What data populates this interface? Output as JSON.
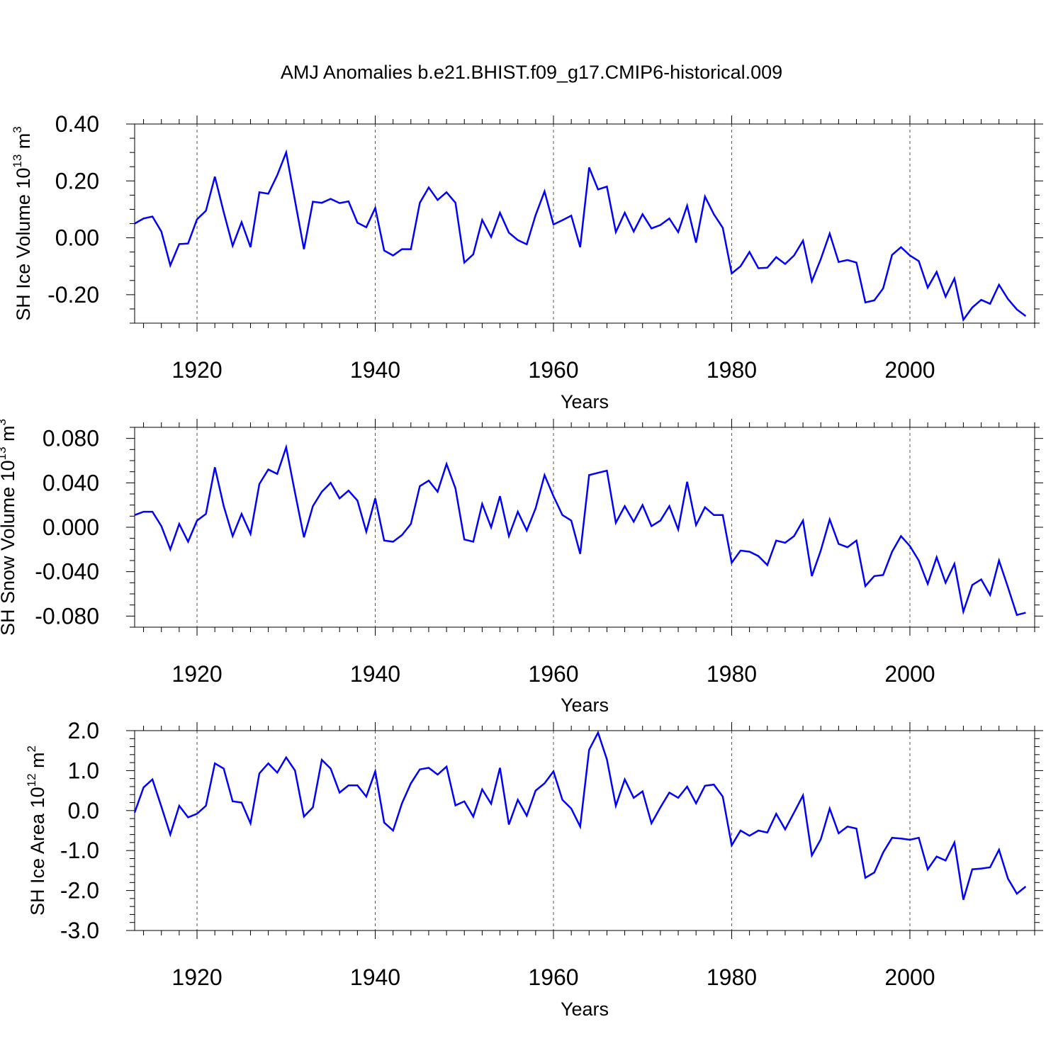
{
  "title": "AMJ Anomalies b.e21.BHIST.f09_g17.CMIP6-historical.009",
  "chart_data": [
    {
      "type": "line",
      "name": "sh-ice-volume",
      "ylabel": "SH Ice Volume 10",
      "ylabel_sup": "13",
      "ylabel_unit": " m",
      "ylabel_unit_sup": "3",
      "xlabel": "Years",
      "xlim": [
        1913,
        2014
      ],
      "ylim": [
        -0.3,
        0.4
      ],
      "yticks": [
        0.4,
        0.2,
        0.0,
        -0.2
      ],
      "yticklabels": [
        "0.40",
        "0.20",
        "0.00",
        "-0.20"
      ],
      "yminor_step": 0.05,
      "xticks": [
        1920,
        1940,
        1960,
        1980,
        2000
      ],
      "xticklabels": [
        "1920",
        "1940",
        "1960",
        "1980",
        "2000"
      ],
      "color": "#0000ff",
      "x_start": 1913,
      "values": [
        0.05,
        0.068,
        0.075,
        0.022,
        -0.097,
        -0.022,
        -0.02,
        0.065,
        0.095,
        0.215,
        0.09,
        -0.028,
        0.055,
        -0.033,
        0.16,
        0.155,
        0.22,
        0.3,
        0.13,
        -0.04,
        0.127,
        0.123,
        0.137,
        0.122,
        0.128,
        0.053,
        0.037,
        0.105,
        -0.045,
        -0.062,
        -0.04,
        -0.04,
        0.123,
        0.177,
        0.133,
        0.16,
        0.123,
        -0.087,
        -0.058,
        0.063,
        0.003,
        0.088,
        0.018,
        -0.008,
        -0.023,
        0.08,
        0.163,
        0.047,
        0.062,
        0.078,
        -0.033,
        0.247,
        0.17,
        0.18,
        0.02,
        0.088,
        0.022,
        0.083,
        0.033,
        0.045,
        0.068,
        0.02,
        0.113,
        -0.017,
        0.145,
        0.083,
        0.035,
        -0.125,
        -0.1,
        -0.05,
        -0.107,
        -0.105,
        -0.068,
        -0.092,
        -0.062,
        -0.01,
        -0.153,
        -0.075,
        0.015,
        -0.085,
        -0.078,
        -0.087,
        -0.227,
        -0.22,
        -0.178,
        -0.06,
        -0.033,
        -0.062,
        -0.082,
        -0.175,
        -0.12,
        -0.207,
        -0.143,
        -0.288,
        -0.245,
        -0.218,
        -0.232,
        -0.165,
        -0.215,
        -0.252,
        -0.275
      ]
    },
    {
      "type": "line",
      "name": "sh-snow-volume",
      "ylabel": "SH Snow Volume 10",
      "ylabel_sup": "13",
      "ylabel_unit": " m",
      "ylabel_unit_sup": "3",
      "xlabel": "Years",
      "xlim": [
        1913,
        2014
      ],
      "ylim": [
        -0.09,
        0.09
      ],
      "yticks": [
        0.08,
        0.04,
        0.0,
        -0.04,
        -0.08
      ],
      "yticklabels": [
        "0.080",
        "0.040",
        "0.000",
        "-0.040",
        "-0.080"
      ],
      "yminor_step": 0.01,
      "xticks": [
        1920,
        1940,
        1960,
        1980,
        2000
      ],
      "xticklabels": [
        "1920",
        "1940",
        "1960",
        "1980",
        "2000"
      ],
      "color": "#0000ff",
      "x_start": 1913,
      "values": [
        0.011,
        0.014,
        0.014,
        0.001,
        -0.02,
        0.003,
        -0.013,
        0.006,
        0.012,
        0.054,
        0.019,
        -0.008,
        0.012,
        -0.006,
        0.039,
        0.052,
        0.048,
        0.072,
        0.031,
        -0.009,
        0.019,
        0.032,
        0.04,
        0.026,
        0.033,
        0.024,
        -0.004,
        0.026,
        -0.012,
        -0.013,
        -0.007,
        0.003,
        0.037,
        0.042,
        0.032,
        0.057,
        0.035,
        -0.011,
        -0.013,
        0.021,
        0.0,
        0.028,
        -0.008,
        0.014,
        -0.003,
        0.017,
        0.047,
        0.028,
        0.011,
        0.006,
        -0.024,
        0.047,
        0.049,
        0.051,
        0.004,
        0.019,
        0.005,
        0.02,
        0.001,
        0.006,
        0.019,
        -0.002,
        0.041,
        0.002,
        0.018,
        0.011,
        0.011,
        -0.032,
        -0.021,
        -0.022,
        -0.026,
        -0.034,
        -0.012,
        -0.014,
        -0.008,
        0.006,
        -0.044,
        -0.021,
        0.007,
        -0.015,
        -0.018,
        -0.012,
        -0.053,
        -0.044,
        -0.043,
        -0.022,
        -0.008,
        -0.017,
        -0.03,
        -0.051,
        -0.027,
        -0.05,
        -0.033,
        -0.076,
        -0.052,
        -0.047,
        -0.061,
        -0.03,
        -0.054,
        -0.079,
        -0.077
      ]
    },
    {
      "type": "line",
      "name": "sh-ice-area",
      "ylabel": "SH Ice Area 10",
      "ylabel_sup": "12",
      "ylabel_unit": " m",
      "ylabel_unit_sup": "2",
      "xlabel": "Years",
      "xlim": [
        1913,
        2014
      ],
      "ylim": [
        -3.0,
        2.0
      ],
      "yticks": [
        2.0,
        1.0,
        0.0,
        -1.0,
        -2.0,
        -3.0
      ],
      "yticklabels": [
        "2.0",
        "1.0",
        "0.0",
        "-1.0",
        "-2.0",
        "-3.0"
      ],
      "yminor_step": 0.2,
      "xticks": [
        1920,
        1940,
        1960,
        1980,
        2000
      ],
      "xticklabels": [
        "1920",
        "1940",
        "1960",
        "1980",
        "2000"
      ],
      "color": "#0000ff",
      "x_start": 1913,
      "values": [
        -0.05,
        0.58,
        0.78,
        0.1,
        -0.6,
        0.12,
        -0.17,
        -0.08,
        0.12,
        1.18,
        1.05,
        0.23,
        0.2,
        -0.32,
        0.93,
        1.18,
        0.95,
        1.33,
        1.0,
        -0.15,
        0.08,
        1.27,
        1.05,
        0.45,
        0.63,
        0.63,
        0.35,
        0.98,
        -0.3,
        -0.5,
        0.18,
        0.68,
        1.03,
        1.07,
        0.9,
        1.1,
        0.13,
        0.23,
        -0.15,
        0.53,
        0.17,
        1.07,
        -0.35,
        0.27,
        -0.13,
        0.5,
        0.68,
        0.98,
        0.27,
        0.05,
        -0.4,
        1.52,
        1.95,
        1.28,
        0.12,
        0.78,
        0.32,
        0.48,
        -0.32,
        0.08,
        0.45,
        0.32,
        0.6,
        0.18,
        0.62,
        0.65,
        0.35,
        -0.87,
        -0.5,
        -0.63,
        -0.5,
        -0.55,
        -0.08,
        -0.47,
        -0.05,
        0.38,
        -1.12,
        -0.72,
        0.05,
        -0.57,
        -0.4,
        -0.45,
        -1.68,
        -1.55,
        -1.05,
        -0.68,
        -0.7,
        -0.73,
        -0.68,
        -1.47,
        -1.15,
        -1.25,
        -0.8,
        -2.23,
        -1.47,
        -1.45,
        -1.42,
        -0.98,
        -1.7,
        -2.08,
        -1.9
      ]
    }
  ]
}
